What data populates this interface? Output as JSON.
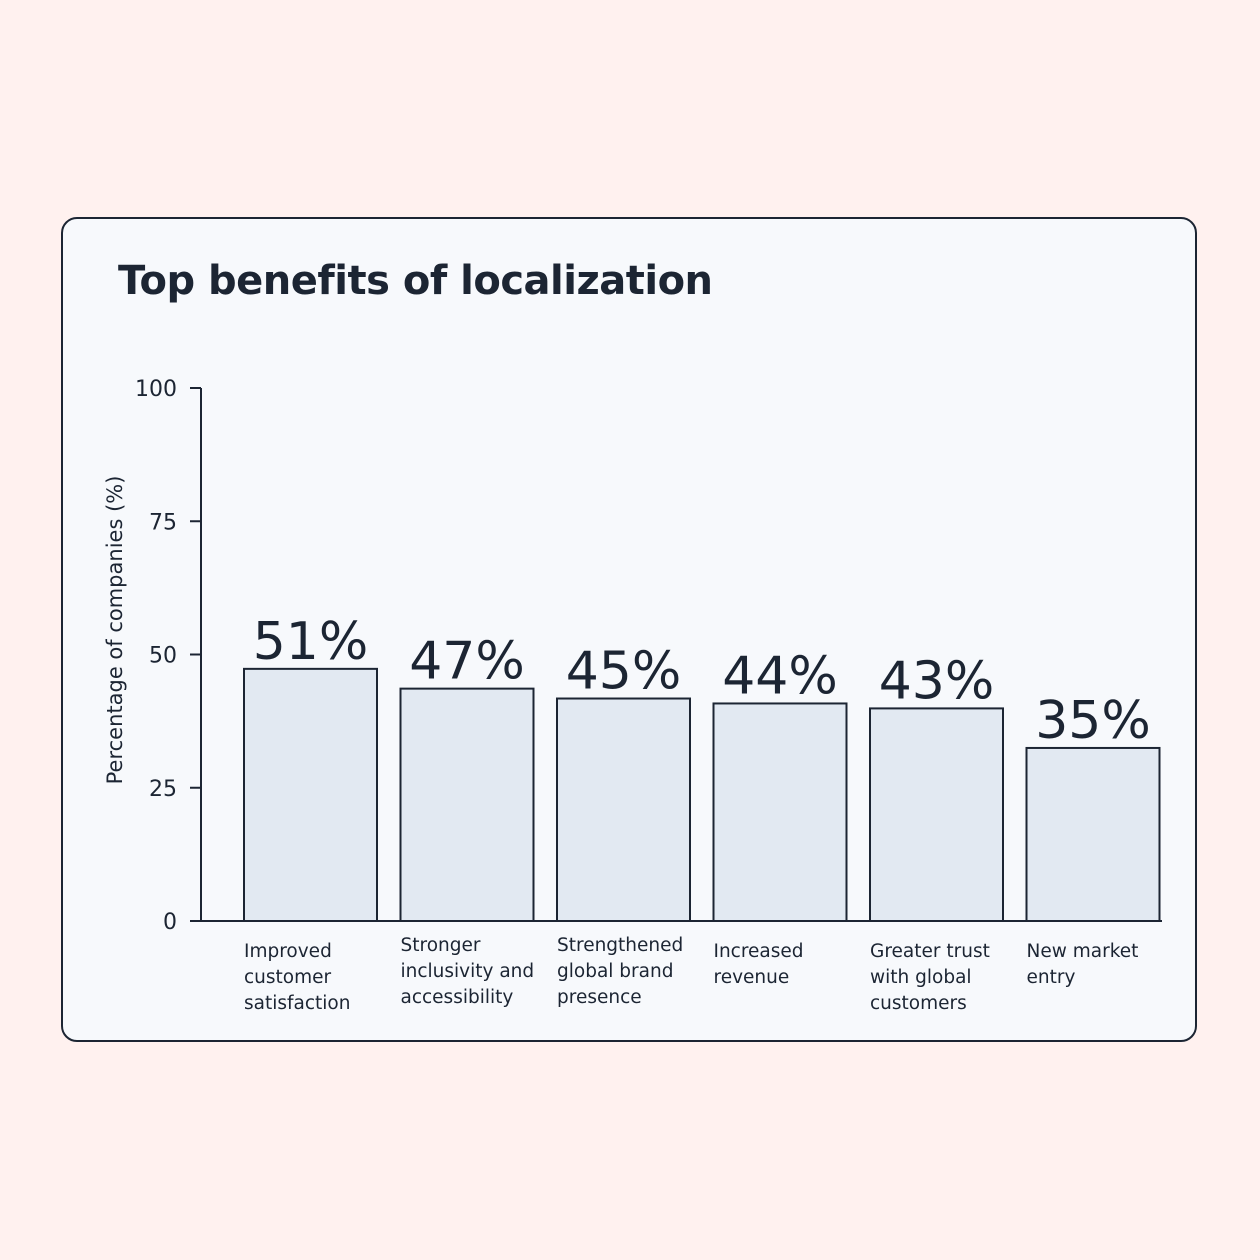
{
  "chart_data": {
    "type": "bar",
    "title": "Top benefits of localization",
    "ylabel": "Percentage of companies (%)",
    "xlabel": "",
    "ylim": [
      0,
      100
    ],
    "yticks": [
      0,
      25,
      50,
      75,
      100
    ],
    "grid": false,
    "categories": [
      [
        "Improved",
        "customer",
        "satisfaction"
      ],
      [
        "Stronger",
        "inclusivity and",
        "accessibility"
      ],
      [
        "Strengthened",
        "global brand",
        "presence"
      ],
      [
        "Increased",
        "revenue"
      ],
      [
        "Greater trust",
        "with global",
        "customers"
      ],
      [
        "New market",
        "entry"
      ]
    ],
    "values": [
      51,
      47,
      45,
      44,
      43,
      35
    ],
    "data_labels": [
      "51%",
      "47%",
      "45%",
      "44%",
      "43%",
      "35%"
    ],
    "colors": {
      "bar_fill": "#e2e9f2",
      "bar_stroke": "#1c2533",
      "text": "#1c2533",
      "card": "#f7f9fc",
      "background": "#fff1ef"
    }
  }
}
